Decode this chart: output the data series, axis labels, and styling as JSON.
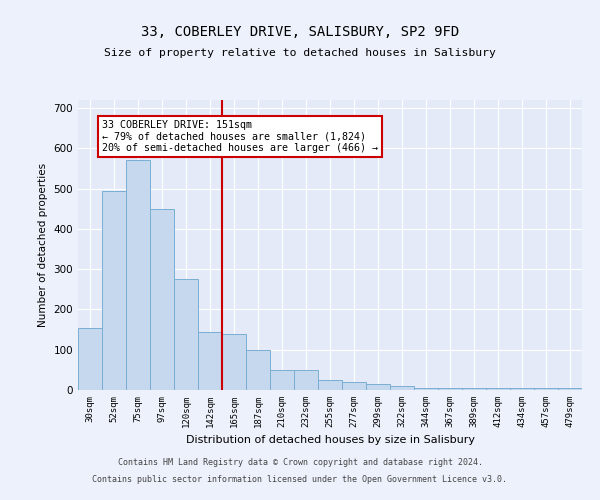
{
  "title1": "33, COBERLEY DRIVE, SALISBURY, SP2 9FD",
  "title2": "Size of property relative to detached houses in Salisbury",
  "xlabel": "Distribution of detached houses by size in Salisbury",
  "ylabel": "Number of detached properties",
  "categories": [
    "30sqm",
    "52sqm",
    "75sqm",
    "97sqm",
    "120sqm",
    "142sqm",
    "165sqm",
    "187sqm",
    "210sqm",
    "232sqm",
    "255sqm",
    "277sqm",
    "299sqm",
    "322sqm",
    "344sqm",
    "367sqm",
    "389sqm",
    "412sqm",
    "434sqm",
    "457sqm",
    "479sqm"
  ],
  "values": [
    155,
    495,
    570,
    450,
    275,
    145,
    140,
    100,
    50,
    50,
    25,
    20,
    15,
    10,
    5,
    5,
    5,
    5,
    5,
    5,
    5
  ],
  "bar_color": "#c5d8ee",
  "bar_edge_color": "#7aaed4",
  "vline_x": 5.5,
  "vline_color": "#cc0000",
  "annotation_text": "33 COBERLEY DRIVE: 151sqm\n← 79% of detached houses are smaller (1,824)\n20% of semi-detached houses are larger (466) →",
  "annotation_box_facecolor": "#ffffff",
  "annotation_box_edgecolor": "#cc0000",
  "ylim": [
    0,
    720
  ],
  "yticks": [
    0,
    100,
    200,
    300,
    400,
    500,
    600,
    700
  ],
  "footer1": "Contains HM Land Registry data © Crown copyright and database right 2024.",
  "footer2": "Contains public sector information licensed under the Open Government Licence v3.0.",
  "bg_color": "#edf1fb",
  "plot_bg_color": "#e4eaf7"
}
